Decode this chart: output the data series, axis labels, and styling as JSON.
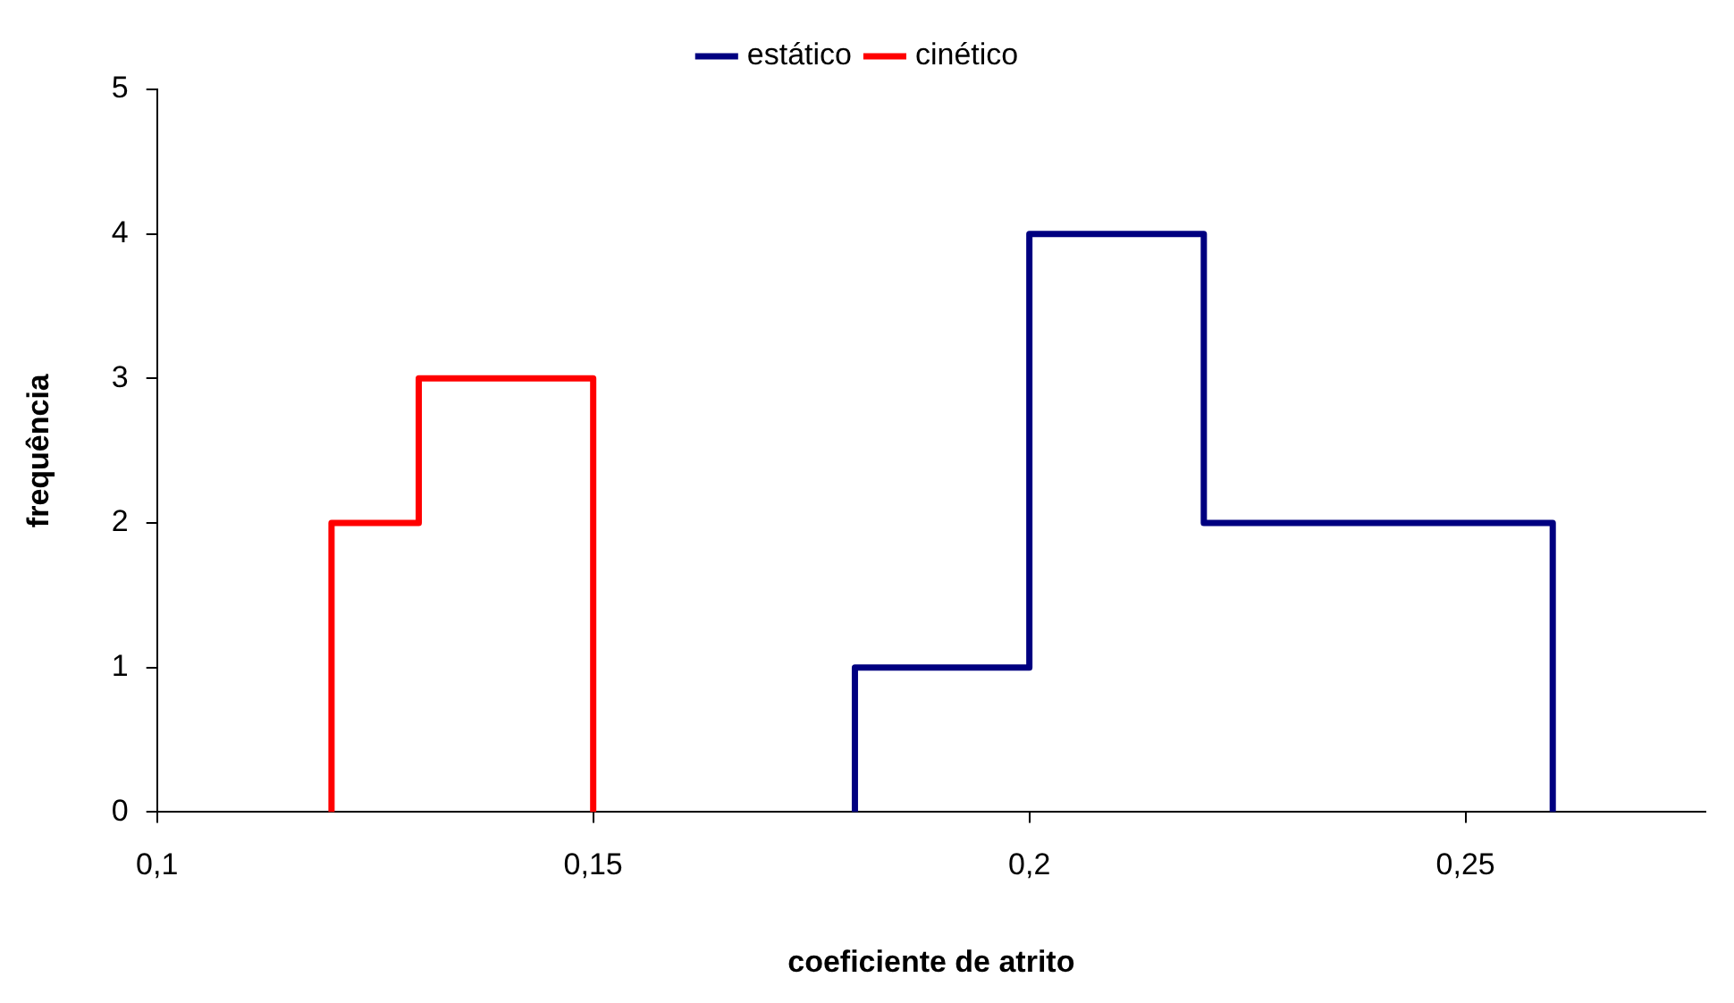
{
  "chart_data": {
    "type": "step",
    "xlabel": "coeficiente de atrito",
    "ylabel": "frequência",
    "series": [
      {
        "name": "estático",
        "color": "#000080",
        "x": [
          0.18,
          0.18,
          0.2,
          0.22,
          0.26,
          0.26
        ],
        "values": [
          0,
          1,
          4,
          2,
          2,
          0
        ]
      },
      {
        "name": "cinético",
        "color": "#ff0000",
        "x": [
          0.12,
          0.12,
          0.13,
          0.15,
          0.15
        ],
        "values": [
          0,
          2,
          3,
          3,
          0
        ]
      }
    ],
    "xlim": [
      0.1,
      0.2775
    ],
    "xticks": [
      {
        "value": 0.1,
        "label": "0,1"
      },
      {
        "value": 0.15,
        "label": "0,15"
      },
      {
        "value": 0.2,
        "label": "0,2"
      },
      {
        "value": 0.25,
        "label": "0,25"
      }
    ],
    "ylim": [
      0,
      5
    ],
    "yticks": [
      0,
      1,
      2,
      3,
      4,
      5
    ],
    "grid": false,
    "legend": "top",
    "marker": "none",
    "line_style": "solid"
  }
}
